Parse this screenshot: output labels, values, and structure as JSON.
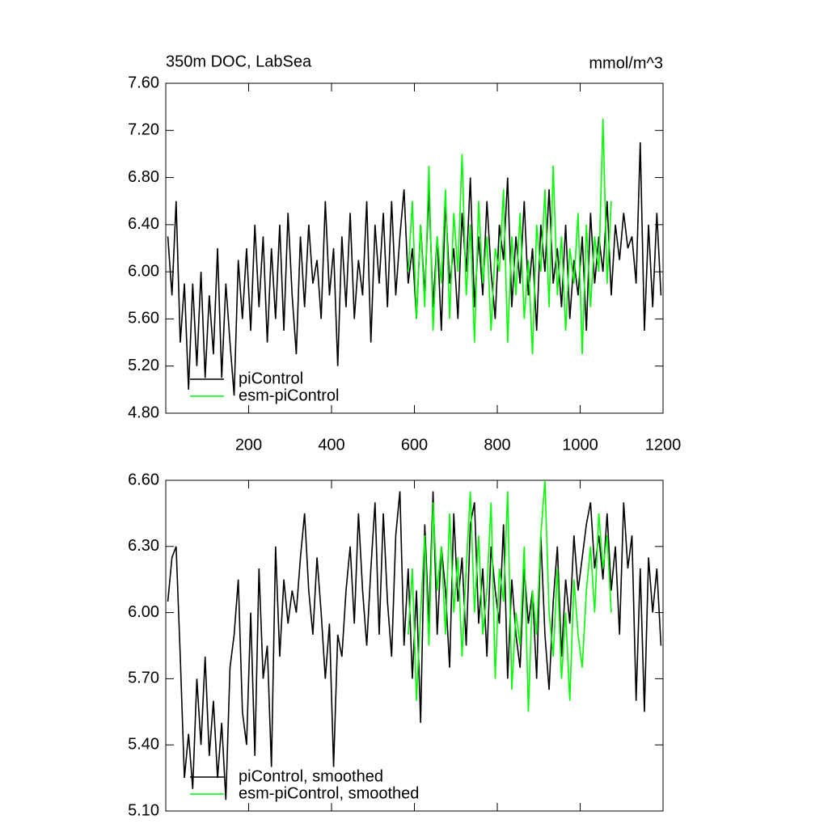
{
  "chart_data": [
    {
      "type": "line",
      "title": "350m DOC, LabSea",
      "units": "mmol/m^3",
      "xlim": [
        0,
        1200
      ],
      "xticks": [
        200,
        400,
        600,
        800,
        1000,
        1200
      ],
      "ylim": [
        4.8,
        7.6
      ],
      "yticks": [
        {
          "value": 4.8,
          "label": "4.80"
        },
        {
          "value": 5.2,
          "label": "5.20"
        },
        {
          "value": 5.6,
          "label": "5.60"
        },
        {
          "value": 6.0,
          "label": "6.00"
        },
        {
          "value": 6.4,
          "label": "6.40"
        },
        {
          "value": 6.8,
          "label": "6.80"
        },
        {
          "value": 7.2,
          "label": "7.20"
        },
        {
          "value": 7.6,
          "label": "7.60"
        }
      ],
      "legend": "lower-left",
      "series": [
        {
          "name": "piControl",
          "color": "#000000",
          "x": [
            5,
            15,
            25,
            35,
            45,
            55,
            65,
            75,
            85,
            95,
            105,
            115,
            125,
            135,
            145,
            155,
            165,
            175,
            185,
            195,
            205,
            215,
            225,
            235,
            245,
            255,
            265,
            275,
            285,
            295,
            305,
            315,
            325,
            335,
            345,
            355,
            365,
            375,
            385,
            395,
            405,
            415,
            425,
            435,
            445,
            455,
            465,
            475,
            485,
            495,
            505,
            515,
            525,
            535,
            545,
            555,
            565,
            575,
            585,
            595,
            605,
            615,
            625,
            635,
            645,
            655,
            665,
            675,
            685,
            695,
            705,
            715,
            725,
            735,
            745,
            755,
            765,
            775,
            785,
            795,
            805,
            815,
            825,
            835,
            845,
            855,
            865,
            875,
            885,
            895,
            905,
            915,
            925,
            935,
            945,
            955,
            965,
            975,
            985,
            995,
            1005,
            1015,
            1025,
            1035,
            1045,
            1055,
            1065,
            1075,
            1085,
            1095,
            1105,
            1115,
            1125,
            1135,
            1145,
            1155,
            1165,
            1175,
            1185,
            1195
          ],
          "values": [
            6.3,
            5.8,
            6.6,
            5.4,
            5.9,
            5.0,
            5.9,
            5.2,
            6.0,
            5.1,
            5.8,
            5.3,
            6.2,
            5.1,
            5.9,
            5.4,
            4.95,
            6.1,
            5.6,
            6.2,
            5.5,
            6.4,
            5.7,
            6.3,
            5.4,
            6.2,
            5.6,
            6.4,
            5.5,
            6.5,
            5.8,
            5.3,
            6.3,
            5.7,
            6.4,
            5.9,
            6.1,
            5.6,
            6.6,
            5.8,
            6.2,
            5.2,
            6.3,
            5.7,
            6.5,
            5.6,
            6.1,
            5.8,
            6.6,
            5.4,
            6.4,
            5.9,
            6.5,
            5.7,
            6.6,
            5.8,
            6.3,
            6.7,
            5.9,
            6.2,
            5.6,
            6.4,
            5.8,
            6.7,
            5.7,
            6.3,
            5.5,
            6.6,
            5.9,
            6.2,
            5.6,
            6.5,
            6.0,
            6.8,
            5.7,
            6.3,
            5.8,
            6.6,
            6.0,
            5.6,
            6.4,
            6.1,
            6.8,
            5.7,
            6.3,
            5.9,
            6.6,
            5.8,
            6.2,
            5.5,
            6.4,
            6.0,
            6.7,
            5.9,
            6.2,
            5.7,
            6.4,
            5.6,
            6.1,
            5.8,
            6.3,
            5.5,
            6.5,
            5.9,
            6.3,
            6.0,
            6.6,
            5.8,
            6.4,
            6.1,
            6.5,
            6.2,
            6.3,
            5.9,
            7.1,
            5.5,
            6.4,
            5.7,
            6.5,
            5.8
          ]
        },
        {
          "name": "esm-piControl",
          "color": "#00ff00",
          "x": [
            585,
            595,
            605,
            615,
            625,
            635,
            645,
            655,
            665,
            675,
            685,
            695,
            705,
            715,
            725,
            735,
            745,
            755,
            765,
            775,
            785,
            795,
            805,
            815,
            825,
            835,
            845,
            855,
            865,
            875,
            885,
            895,
            905,
            915,
            925,
            935,
            945,
            955,
            965,
            975,
            985,
            995,
            1005,
            1015,
            1025,
            1035,
            1045,
            1055,
            1065,
            1075
          ],
          "values": [
            6.0,
            6.6,
            5.6,
            6.4,
            5.7,
            6.9,
            5.5,
            6.3,
            5.9,
            6.7,
            5.6,
            6.5,
            6.0,
            7.0,
            5.8,
            6.4,
            5.4,
            6.6,
            5.9,
            6.3,
            5.5,
            6.2,
            6.0,
            6.7,
            5.4,
            6.3,
            5.8,
            6.5,
            5.6,
            6.1,
            5.3,
            6.4,
            6.0,
            6.7,
            5.7,
            6.9,
            5.8,
            6.3,
            5.5,
            6.2,
            5.9,
            6.5,
            5.3,
            6.4,
            5.7,
            6.3,
            6.0,
            7.3,
            5.9,
            6.6
          ]
        }
      ]
    },
    {
      "type": "line",
      "xlim": [
        0,
        1200
      ],
      "xticks": [
        200,
        400,
        600,
        800,
        1000,
        1200
      ],
      "xtick_labels": false,
      "ylim": [
        5.1,
        6.6
      ],
      "yticks": [
        {
          "value": 5.1,
          "label": "5.10"
        },
        {
          "value": 5.4,
          "label": "5.40"
        },
        {
          "value": 5.7,
          "label": "5.70"
        },
        {
          "value": 6.0,
          "label": "6.00"
        },
        {
          "value": 6.3,
          "label": "6.30"
        },
        {
          "value": 6.6,
          "label": "6.60"
        }
      ],
      "legend": "lower-left",
      "series": [
        {
          "name": "piControl, smoothed",
          "color": "#000000",
          "x": [
            5,
            15,
            25,
            35,
            45,
            55,
            65,
            75,
            85,
            95,
            105,
            115,
            125,
            135,
            145,
            155,
            165,
            175,
            185,
            195,
            205,
            215,
            225,
            235,
            245,
            255,
            265,
            275,
            285,
            295,
            305,
            315,
            325,
            335,
            345,
            355,
            365,
            375,
            385,
            395,
            405,
            415,
            425,
            435,
            445,
            455,
            465,
            475,
            485,
            495,
            505,
            515,
            525,
            535,
            545,
            555,
            565,
            575,
            585,
            595,
            605,
            615,
            625,
            635,
            645,
            655,
            665,
            675,
            685,
            695,
            705,
            715,
            725,
            735,
            745,
            755,
            765,
            775,
            785,
            795,
            805,
            815,
            825,
            835,
            845,
            855,
            865,
            875,
            885,
            895,
            905,
            915,
            925,
            935,
            945,
            955,
            965,
            975,
            985,
            995,
            1005,
            1015,
            1025,
            1035,
            1045,
            1055,
            1065,
            1075,
            1085,
            1095,
            1105,
            1115,
            1125,
            1135,
            1145,
            1155,
            1165,
            1175,
            1185,
            1195
          ],
          "values": [
            6.05,
            6.25,
            6.3,
            5.8,
            5.25,
            5.45,
            5.2,
            5.7,
            5.4,
            5.8,
            5.35,
            5.6,
            5.25,
            5.5,
            5.15,
            5.75,
            5.9,
            6.15,
            5.55,
            5.4,
            6.0,
            5.35,
            6.2,
            5.7,
            5.85,
            5.3,
            6.3,
            5.8,
            6.15,
            5.95,
            6.1,
            6.0,
            6.25,
            6.45,
            6.1,
            5.9,
            6.25,
            6.0,
            5.7,
            5.95,
            5.3,
            5.9,
            5.8,
            6.1,
            6.3,
            5.95,
            6.45,
            6.1,
            5.85,
            6.2,
            6.5,
            5.9,
            6.45,
            6.05,
            5.8,
            6.35,
            6.55,
            5.85,
            6.2,
            5.7,
            6.1,
            5.5,
            6.4,
            5.95,
            6.55,
            5.9,
            6.3,
            6.1,
            5.75,
            6.45,
            6.05,
            6.25,
            5.85,
            6.4,
            6.5,
            5.95,
            6.2,
            5.8,
            6.3,
            6.1,
            5.95,
            6.4,
            5.7,
            6.15,
            5.9,
            5.75,
            6.2,
            5.95,
            6.1,
            5.7,
            6.35,
            5.9,
            5.65,
            6.05,
            6.3,
            5.8,
            6.15,
            5.95,
            6.35,
            6.1,
            6.25,
            6.4,
            6.5,
            6.2,
            6.35,
            6.15,
            6.45,
            6.1,
            6.3,
            5.9,
            6.5,
            6.2,
            6.35,
            5.6,
            6.2,
            5.55,
            6.25,
            6.0,
            6.2,
            5.85
          ]
        },
        {
          "name": "esm-piControl, smoothed",
          "color": "#00ff00",
          "x": [
            585,
            595,
            605,
            615,
            625,
            635,
            645,
            655,
            665,
            675,
            685,
            695,
            705,
            715,
            725,
            735,
            745,
            755,
            765,
            775,
            785,
            795,
            805,
            815,
            825,
            835,
            845,
            855,
            865,
            875,
            885,
            895,
            905,
            915,
            925,
            935,
            945,
            955,
            965,
            975,
            985,
            995,
            1005,
            1015,
            1025,
            1035,
            1045,
            1055,
            1065,
            1075
          ],
          "values": [
            5.9,
            6.2,
            5.6,
            6.0,
            6.35,
            5.85,
            6.5,
            6.1,
            6.3,
            5.9,
            6.45,
            6.0,
            6.25,
            5.8,
            6.2,
            6.55,
            6.0,
            6.35,
            5.9,
            6.1,
            6.5,
            5.7,
            6.2,
            6.05,
            6.55,
            5.65,
            6.0,
            5.85,
            6.3,
            5.55,
            6.1,
            5.9,
            6.35,
            6.6,
            6.0,
            5.8,
            6.2,
            5.7,
            6.0,
            5.6,
            6.15,
            5.9,
            5.75,
            6.1,
            6.3,
            6.0,
            6.45,
            6.2,
            6.35,
            6.0
          ]
        }
      ]
    }
  ]
}
